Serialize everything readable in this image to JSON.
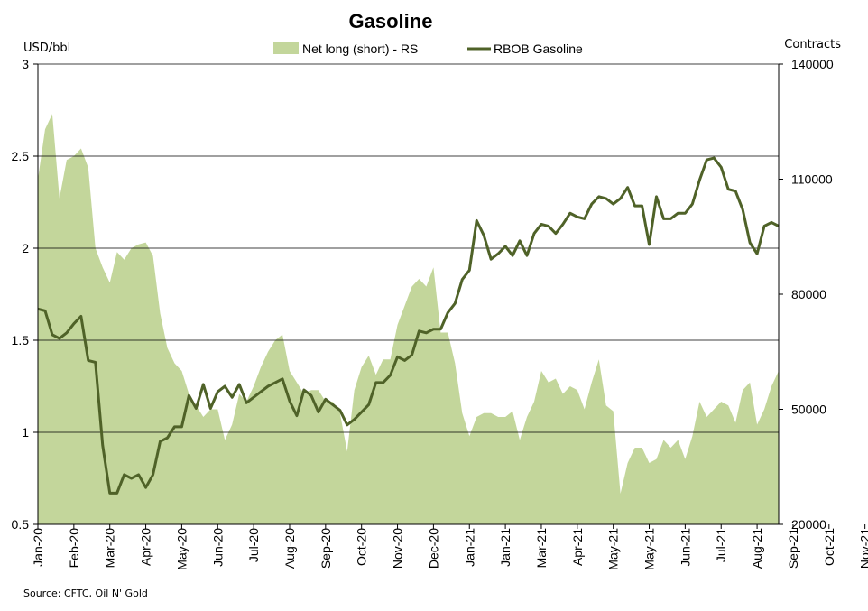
{
  "chart_data": {
    "type": "area+line",
    "title": "Gasoline",
    "source": "Source: CFTC, Oil N' Gold",
    "left_axis": {
      "unit": "USD/bbl",
      "min": 0.5,
      "max": 3,
      "ticks": [
        "0.5",
        "1",
        "1.5",
        "2",
        "2.5",
        "3"
      ]
    },
    "right_axis": {
      "unit": "Contracts",
      "min": 20000,
      "max": 140000,
      "ticks": [
        "20000",
        "50000",
        "80000",
        "110000",
        "140000"
      ]
    },
    "grid": true,
    "legend_position": "top",
    "x_labels": [
      "Jan-20",
      "Feb-20",
      "Mar-20",
      "Apr-20",
      "May-20",
      "Jun-20",
      "Jul-20",
      "Aug-20",
      "Sep-20",
      "Oct-20",
      "Nov-20",
      "Dec-20",
      "Jan-21",
      "Jan-21",
      "Mar-21",
      "Apr-21",
      "May-21",
      "May-21",
      "Jun-21",
      "Jul-21",
      "Aug-21",
      "Sep-21",
      "Oct-21",
      "Nov-21"
    ],
    "x_label_weeks": [
      0,
      5,
      10,
      15,
      20,
      25,
      30,
      35,
      40,
      45,
      50,
      55,
      60,
      65,
      70,
      75,
      80,
      85,
      90,
      95,
      100,
      105,
      110,
      115
    ],
    "series": [
      {
        "name": "Net long (short) - RS",
        "type": "area",
        "axis": "right",
        "color": "#c3d69b",
        "values": [
          110000,
          123000,
          127000,
          105000,
          115000,
          116000,
          118000,
          113000,
          92000,
          87000,
          83000,
          91000,
          89000,
          92000,
          93000,
          93500,
          90000,
          75000,
          66000,
          62000,
          60000,
          54000,
          51000,
          48000,
          50000,
          50000,
          42000,
          46000,
          54000,
          52000,
          56000,
          61000,
          65000,
          68000,
          69500,
          60000,
          57000,
          54000,
          55000,
          55000,
          52000,
          52000,
          49000,
          39000,
          55000,
          61000,
          64000,
          59000,
          63000,
          63000,
          72000,
          77000,
          82000,
          84000,
          82000,
          87000,
          70000,
          70000,
          62000,
          49000,
          43000,
          48000,
          49000,
          49000,
          48000,
          48000,
          49500,
          42000,
          48000,
          52000,
          60000,
          57000,
          58000,
          54000,
          56000,
          55000,
          50000,
          57000,
          63000,
          51000,
          49500,
          28000,
          36000,
          40000,
          40000,
          36000,
          37000,
          42000,
          40000,
          42000,
          37000,
          43000,
          52000,
          48000,
          50000,
          52000,
          51000,
          46500,
          55000,
          57000,
          46000,
          50000,
          56000,
          60000
        ]
      },
      {
        "name": "RBOB Gasoline",
        "type": "line",
        "axis": "left",
        "color": "#4f6228",
        "values": [
          1.67,
          1.66,
          1.53,
          1.51,
          1.54,
          1.59,
          1.63,
          1.39,
          1.38,
          0.93,
          0.67,
          0.67,
          0.77,
          0.75,
          0.77,
          0.7,
          0.77,
          0.95,
          0.97,
          1.03,
          1.03,
          1.2,
          1.13,
          1.26,
          1.13,
          1.22,
          1.25,
          1.19,
          1.26,
          1.16,
          1.19,
          1.22,
          1.25,
          1.27,
          1.29,
          1.17,
          1.09,
          1.23,
          1.2,
          1.11,
          1.18,
          1.15,
          1.12,
          1.04,
          1.07,
          1.11,
          1.15,
          1.27,
          1.27,
          1.31,
          1.41,
          1.39,
          1.42,
          1.55,
          1.54,
          1.56,
          1.56,
          1.65,
          1.7,
          1.83,
          1.88,
          2.15,
          2.07,
          1.94,
          1.97,
          2.01,
          1.96,
          2.04,
          1.96,
          2.08,
          2.13,
          2.12,
          2.08,
          2.13,
          2.19,
          2.17,
          2.16,
          2.24,
          2.28,
          2.27,
          2.24,
          2.27,
          2.33,
          2.23,
          2.23,
          2.02,
          2.28,
          2.16,
          2.16,
          2.19,
          2.19,
          2.24,
          2.37,
          2.48,
          2.49,
          2.44,
          2.32,
          2.31,
          2.21,
          2.03,
          1.97,
          2.12,
          2.14,
          2.12
        ]
      }
    ]
  }
}
